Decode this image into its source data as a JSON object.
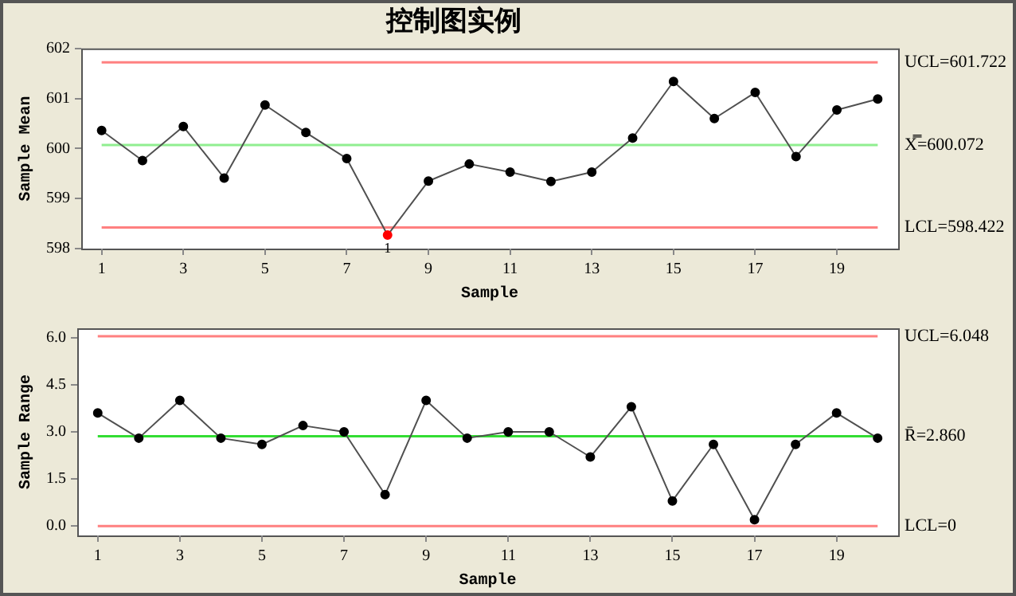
{
  "chart_data": [
    {
      "type": "line",
      "title": "控制图实例",
      "xlabel": "Sample",
      "ylabel": "Sample Mean",
      "x": [
        1,
        2,
        3,
        4,
        5,
        6,
        7,
        8,
        9,
        10,
        11,
        12,
        13,
        14,
        15,
        16,
        17,
        18,
        19,
        20
      ],
      "series": [
        {
          "color": "#505050",
          "colors": [
            "#000000",
            "#000000",
            "#000000",
            "#000000",
            "#000000",
            "#000000",
            "#000000",
            "#ff0000",
            "#000000",
            "#000000",
            "#000000",
            "#000000",
            "#000000",
            "#000000",
            "#000000",
            "#000000",
            "#000000",
            "#000000",
            "#000000",
            "#000000"
          ],
          "values": [
            600.36,
            599.76,
            600.44,
            599.41,
            600.87,
            600.32,
            599.8,
            598.27,
            599.35,
            599.69,
            599.53,
            599.34,
            599.53,
            600.21,
            601.34,
            600.6,
            601.12,
            599.84,
            600.77,
            600.99
          ]
        }
      ],
      "xlim": [
        0.5,
        20.5
      ],
      "xticks": [
        1,
        3,
        5,
        7,
        9,
        11,
        13,
        15,
        17,
        19
      ],
      "ylim": [
        598,
        602
      ],
      "yticks": [
        598,
        599,
        600,
        601,
        602
      ],
      "ref_lines": [
        {
          "axis": "y",
          "value": 601.722,
          "label": "UCL=601.722",
          "color": "#ff8080"
        },
        {
          "axis": "y",
          "value": 600.072,
          "label": "X̿=600.072",
          "color": "#90ee90"
        },
        {
          "axis": "y",
          "value": 598.422,
          "label": "LCL=598.422",
          "color": "#ff8080"
        }
      ],
      "annotations": [
        {
          "text": "1",
          "x": 8,
          "y": 598.27
        }
      ],
      "marker": "circle",
      "grid": false,
      "legend": false
    },
    {
      "type": "line",
      "xlabel": "Sample",
      "ylabel": "Sample Range",
      "x": [
        1,
        2,
        3,
        4,
        5,
        6,
        7,
        8,
        9,
        10,
        11,
        12,
        13,
        14,
        15,
        16,
        17,
        18,
        19,
        20
      ],
      "series": [
        {
          "color": "#505050",
          "colors": [
            "#000000",
            "#000000",
            "#000000",
            "#000000",
            "#000000",
            "#000000",
            "#000000",
            "#000000",
            "#000000",
            "#000000",
            "#000000",
            "#000000",
            "#000000",
            "#000000",
            "#000000",
            "#000000",
            "#000000",
            "#000000",
            "#000000",
            "#000000"
          ],
          "values": [
            3.6,
            2.8,
            4.0,
            2.8,
            2.6,
            3.2,
            3.0,
            1.0,
            4.0,
            2.8,
            3.0,
            3.0,
            2.2,
            3.8,
            0.8,
            2.6,
            0.2,
            2.6,
            3.6,
            2.8
          ]
        }
      ],
      "xlim": [
        0.5,
        20.5
      ],
      "xticks": [
        1,
        3,
        5,
        7,
        9,
        11,
        13,
        15,
        17,
        19
      ],
      "ylim": [
        -0.3,
        6.3
      ],
      "yticks": [
        {
          "value": 0,
          "label": "0.0"
        },
        {
          "value": 1.5,
          "label": "1.5"
        },
        {
          "value": 3,
          "label": "3.0"
        },
        {
          "value": 4.5,
          "label": "4.5"
        },
        {
          "value": 6,
          "label": "6.0"
        }
      ],
      "ref_lines": [
        {
          "axis": "y",
          "value": 6.048,
          "label": "UCL=6.048",
          "color": "#ff8080"
        },
        {
          "axis": "y",
          "value": 2.86,
          "label": "R̄=2.860",
          "color": "#33dd33"
        },
        {
          "axis": "y",
          "value": 0,
          "label": "LCL=0",
          "color": "#ff8080"
        }
      ],
      "marker": "circle",
      "grid": false,
      "legend": false
    }
  ]
}
